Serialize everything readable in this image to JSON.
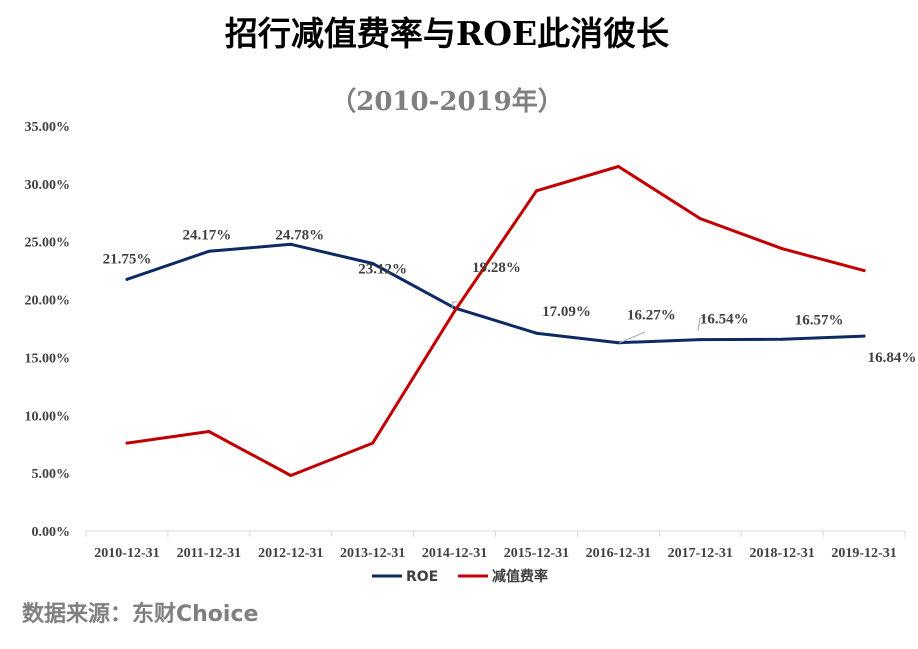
{
  "chart_data": {
    "type": "line",
    "title": "招行减值费率与ROE此消彼长",
    "subtitle": "（2010-2019年）",
    "categories": [
      "2010-12-31",
      "2011-12-31",
      "2012-12-31",
      "2013-12-31",
      "2014-12-31",
      "2015-12-31",
      "2016-12-31",
      "2017-12-31",
      "2018-12-31",
      "2019-12-31"
    ],
    "ylim": [
      0,
      35
    ],
    "yticks": [
      "0.00%",
      "5.00%",
      "10.00%",
      "15.00%",
      "20.00%",
      "25.00%",
      "30.00%",
      "35.00%"
    ],
    "series": [
      {
        "name": "ROE",
        "color": "#0d2a63",
        "values": [
          21.75,
          24.17,
          24.78,
          23.12,
          19.28,
          17.09,
          16.27,
          16.54,
          16.57,
          16.84
        ],
        "labels": [
          "21.75%",
          "24.17%",
          "24.78%",
          "23.12%",
          "19.28%",
          "17.09%",
          "16.27%",
          "16.54%",
          "16.57%",
          "16.84%"
        ]
      },
      {
        "name": "减值费率",
        "color": "#c00000",
        "values": [
          7.6,
          8.6,
          4.8,
          7.6,
          19.0,
          29.4,
          31.5,
          27.0,
          24.4,
          22.5
        ]
      }
    ],
    "legend_position": "bottom",
    "grid": false
  },
  "source": "数据来源：东财Choice"
}
